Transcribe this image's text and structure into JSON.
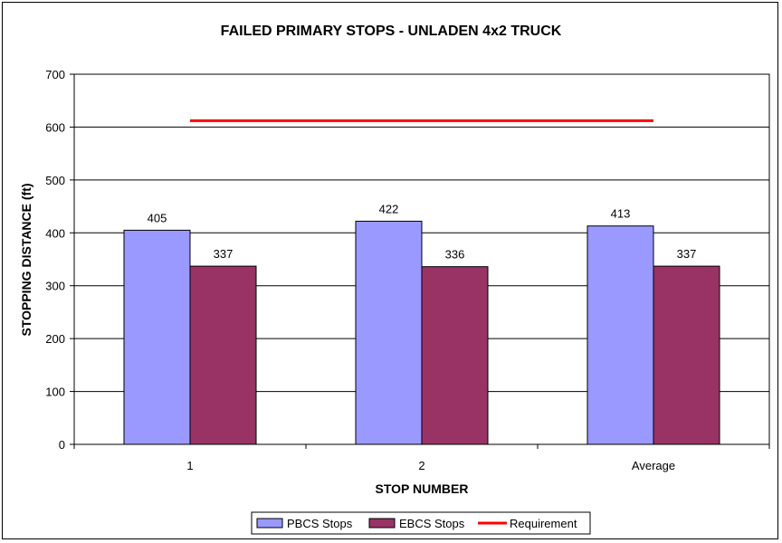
{
  "chart_data": {
    "type": "bar",
    "title": "FAILED PRIMARY STOPS - UNLADEN 4x2 TRUCK",
    "xlabel": "STOP NUMBER",
    "ylabel": "STOPPING DISTANCE (ft)",
    "categories": [
      "1",
      "2",
      "Average"
    ],
    "ylim": [
      0,
      700
    ],
    "yticks": [
      0,
      100,
      200,
      300,
      400,
      500,
      600,
      700
    ],
    "grid": true,
    "legend_position": "bottom",
    "series": [
      {
        "name": "PBCS Stops",
        "type": "bar",
        "values": [
          405,
          422,
          413
        ],
        "color": "#9999ff"
      },
      {
        "name": "EBCS Stops",
        "type": "bar",
        "values": [
          337,
          336,
          337
        ],
        "color": "#993366"
      }
    ],
    "reference_line": {
      "name": "Requirement",
      "value": 612,
      "color": "#ff0000"
    },
    "data_labels": [
      "405",
      "337",
      "422",
      "336",
      "413",
      "337"
    ]
  }
}
